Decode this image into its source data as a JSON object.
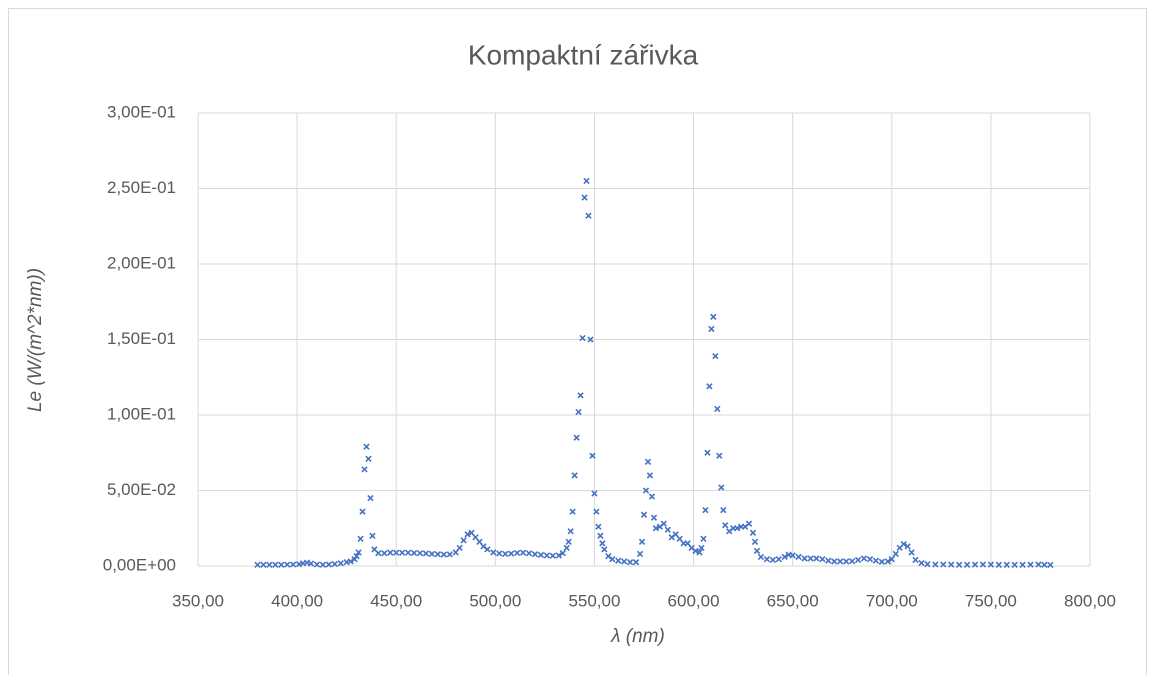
{
  "chart_data": {
    "type": "scatter",
    "title": "Kompaktní zářivka",
    "x_label": "λ (nm)",
    "y_label": "Le (W/(m^2*nm))",
    "color": "#4472c4",
    "grid": true,
    "xlim": [
      350,
      800
    ],
    "xticks": [
      {
        "value": 350,
        "label": "350,00"
      },
      {
        "value": 400,
        "label": "400,00"
      },
      {
        "value": 450,
        "label": "450,00"
      },
      {
        "value": 500,
        "label": "500,00"
      },
      {
        "value": 550,
        "label": "550,00"
      },
      {
        "value": 600,
        "label": "600,00"
      },
      {
        "value": 650,
        "label": "650,00"
      },
      {
        "value": 700,
        "label": "700,00"
      },
      {
        "value": 750,
        "label": "750,00"
      },
      {
        "value": 800,
        "label": "800,00"
      }
    ],
    "ylim": [
      0,
      0.3
    ],
    "yticks": [
      {
        "value": 0,
        "label": "0,00E+00"
      },
      {
        "value": 0.05,
        "label": "5,00E-02"
      },
      {
        "value": 0.1,
        "label": "1,00E-01"
      },
      {
        "value": 0.15,
        "label": "1,50E-01"
      },
      {
        "value": 0.2,
        "label": "2,00E-01"
      },
      {
        "value": 0.25,
        "label": "2,50E-01"
      },
      {
        "value": 0.3,
        "label": "3,00E-01"
      }
    ],
    "x": [
      380,
      383,
      386,
      389,
      392,
      395,
      398,
      401,
      403,
      405,
      407,
      410,
      413,
      416,
      419,
      422,
      425,
      427,
      429,
      430,
      431,
      432,
      433,
      434,
      435,
      436,
      437,
      438,
      439,
      441,
      444,
      447,
      450,
      453,
      456,
      459,
      462,
      465,
      468,
      471,
      474,
      477,
      480,
      482,
      484,
      486,
      488,
      490,
      492,
      494,
      496,
      499,
      502,
      505,
      508,
      511,
      514,
      517,
      520,
      523,
      526,
      529,
      532,
      534,
      536,
      537,
      538,
      539,
      540,
      541,
      542,
      543,
      544,
      545,
      546,
      547,
      548,
      549,
      550,
      551,
      552,
      553,
      554,
      555,
      557,
      559,
      562,
      565,
      568,
      571,
      573,
      574,
      575,
      576,
      577,
      578,
      579,
      580,
      581,
      583,
      585,
      587,
      589,
      591,
      593,
      595,
      597,
      599,
      601,
      603,
      604,
      605,
      606,
      607,
      608,
      609,
      610,
      611,
      612,
      613,
      614,
      615,
      616,
      618,
      620,
      622,
      624,
      626,
      628,
      630,
      631,
      632,
      634,
      637,
      640,
      643,
      646,
      648,
      650,
      653,
      656,
      659,
      662,
      665,
      668,
      671,
      674,
      677,
      680,
      683,
      686,
      689,
      692,
      695,
      698,
      700,
      702,
      704,
      706,
      708,
      710,
      712,
      715,
      718,
      722,
      726,
      730,
      734,
      738,
      742,
      746,
      750,
      754,
      758,
      762,
      766,
      770,
      774,
      777,
      780
    ],
    "values": [
      0.0008,
      0.0008,
      0.0008,
      0.0008,
      0.0008,
      0.0009,
      0.001,
      0.0012,
      0.0018,
      0.0022,
      0.0016,
      0.001,
      0.0008,
      0.001,
      0.0013,
      0.0018,
      0.0025,
      0.003,
      0.0045,
      0.0065,
      0.009,
      0.018,
      0.036,
      0.064,
      0.079,
      0.071,
      0.045,
      0.02,
      0.011,
      0.0085,
      0.0085,
      0.0088,
      0.0088,
      0.0088,
      0.0088,
      0.0086,
      0.0085,
      0.0083,
      0.008,
      0.0078,
      0.0076,
      0.0077,
      0.009,
      0.012,
      0.017,
      0.021,
      0.022,
      0.019,
      0.016,
      0.013,
      0.011,
      0.009,
      0.0083,
      0.008,
      0.0082,
      0.0086,
      0.0088,
      0.0084,
      0.0078,
      0.0073,
      0.007,
      0.0068,
      0.007,
      0.0085,
      0.012,
      0.016,
      0.023,
      0.036,
      0.06,
      0.085,
      0.102,
      0.113,
      0.151,
      0.244,
      0.255,
      0.232,
      0.15,
      0.073,
      0.048,
      0.036,
      0.026,
      0.02,
      0.015,
      0.011,
      0.0065,
      0.0045,
      0.0035,
      0.003,
      0.0025,
      0.0025,
      0.008,
      0.016,
      0.034,
      0.05,
      0.069,
      0.06,
      0.046,
      0.032,
      0.025,
      0.026,
      0.028,
      0.024,
      0.019,
      0.021,
      0.018,
      0.015,
      0.015,
      0.012,
      0.01,
      0.009,
      0.012,
      0.018,
      0.037,
      0.075,
      0.119,
      0.157,
      0.165,
      0.139,
      0.104,
      0.073,
      0.052,
      0.037,
      0.027,
      0.023,
      0.025,
      0.025,
      0.026,
      0.026,
      0.028,
      0.022,
      0.016,
      0.01,
      0.006,
      0.0045,
      0.004,
      0.0045,
      0.006,
      0.0075,
      0.007,
      0.006,
      0.005,
      0.005,
      0.005,
      0.0045,
      0.0035,
      0.003,
      0.003,
      0.003,
      0.0032,
      0.004,
      0.005,
      0.0045,
      0.0035,
      0.0028,
      0.003,
      0.0045,
      0.008,
      0.012,
      0.0145,
      0.013,
      0.009,
      0.004,
      0.002,
      0.0012,
      0.001,
      0.001,
      0.0009,
      0.0008,
      0.0008,
      0.0009,
      0.001,
      0.0009,
      0.0008,
      0.0008,
      0.0008,
      0.0008,
      0.0009,
      0.001,
      0.0008,
      0.0007
    ]
  }
}
